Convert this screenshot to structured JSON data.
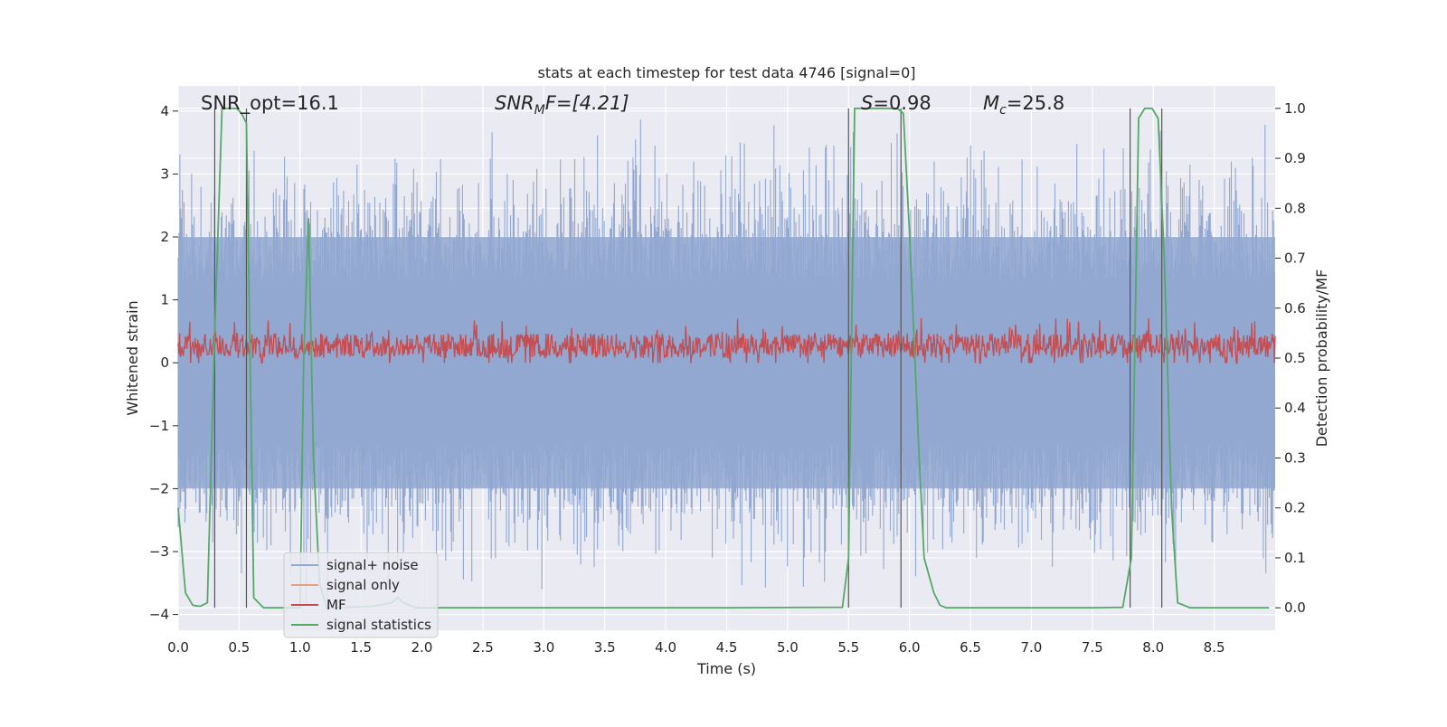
{
  "chart_data": {
    "type": "line",
    "title": "stats at each timestep for test data 4746 [signal=0]",
    "xlabel": "Time (s)",
    "ylabel": "Whitened strain",
    "y2label": "Detection probability/MF",
    "xlim": [
      0.0,
      9.0
    ],
    "ylim": [
      -4.25,
      4.4
    ],
    "y2lim": [
      -0.045,
      1.045
    ],
    "xticks": [
      "0.0",
      "0.5",
      "1.0",
      "1.5",
      "2.0",
      "2.5",
      "3.0",
      "3.5",
      "4.0",
      "4.5",
      "5.0",
      "5.5",
      "6.0",
      "6.5",
      "7.0",
      "7.5",
      "8.0",
      "8.5"
    ],
    "yticks": [
      "4",
      "3",
      "2",
      "1",
      "0",
      "−1",
      "−2",
      "−3",
      "−4"
    ],
    "y2ticks": [
      "1.0",
      "0.9",
      "0.8",
      "0.7",
      "0.6",
      "0.5",
      "0.4",
      "0.3",
      "0.2",
      "0.1",
      "0.0"
    ],
    "grid": true,
    "legend_placement": "lower-left",
    "annotations": {
      "snr_opt": "SNR_opt=16.1",
      "snr_mf_main": "SNR",
      "snr_mf_sub": "M",
      "snr_mf_tail": "F=[4.21]",
      "s_label": "S",
      "s_value": "=0.98",
      "mc_main": "M",
      "mc_sub": "c",
      "mc_value": "=25.8"
    },
    "series": [
      {
        "name": "signal+ noise",
        "color": "#92a8d1",
        "description_band": [
          -2.0,
          2.0
        ]
      },
      {
        "name": "signal only",
        "color": "#e8a07c",
        "values": []
      },
      {
        "name": "MF",
        "color": "#c44e52",
        "axis": "right",
        "band": [
          0.5,
          0.59
        ]
      },
      {
        "name": "signal statistics",
        "color": "#55a868",
        "axis": "right",
        "x": [
          0.0,
          0.06,
          0.12,
          0.18,
          0.24,
          0.3,
          0.36,
          0.42,
          0.48,
          0.52,
          0.56,
          0.62,
          0.7,
          0.9,
          1.0,
          1.03,
          1.07,
          1.11,
          1.16,
          1.22,
          1.3,
          1.6,
          1.75,
          1.8,
          1.85,
          1.95,
          3.0,
          4.5,
          5.45,
          5.5,
          5.55,
          5.9,
          5.95,
          6.0,
          6.08,
          6.12,
          6.2,
          6.25,
          6.3,
          7.5,
          7.75,
          7.82,
          7.88,
          7.93,
          7.99,
          8.04,
          8.09,
          8.15,
          8.2,
          8.3,
          8.95
        ],
        "values": [
          0.2,
          0.03,
          0.005,
          0.003,
          0.01,
          0.55,
          1.0,
          1.0,
          1.0,
          0.99,
          0.97,
          0.02,
          0.0,
          0.0,
          0.0,
          0.5,
          0.78,
          0.3,
          0.05,
          0.0,
          0.0,
          0.003,
          0.01,
          0.02,
          0.01,
          0.0,
          0.0,
          0.0,
          0.001,
          0.1,
          1.0,
          1.0,
          0.99,
          0.75,
          0.3,
          0.1,
          0.03,
          0.005,
          0.0,
          0.0,
          0.001,
          0.1,
          0.98,
          1.0,
          1.0,
          0.98,
          0.7,
          0.2,
          0.01,
          0.0,
          0.0
        ]
      }
    ],
    "vertical_markers": [
      0.3,
      0.56,
      5.5,
      5.93,
      7.81,
      8.07
    ]
  },
  "colors": {
    "plot_background": "#eaeaf2",
    "grid": "#ffffff",
    "marker_line": "#555555"
  }
}
